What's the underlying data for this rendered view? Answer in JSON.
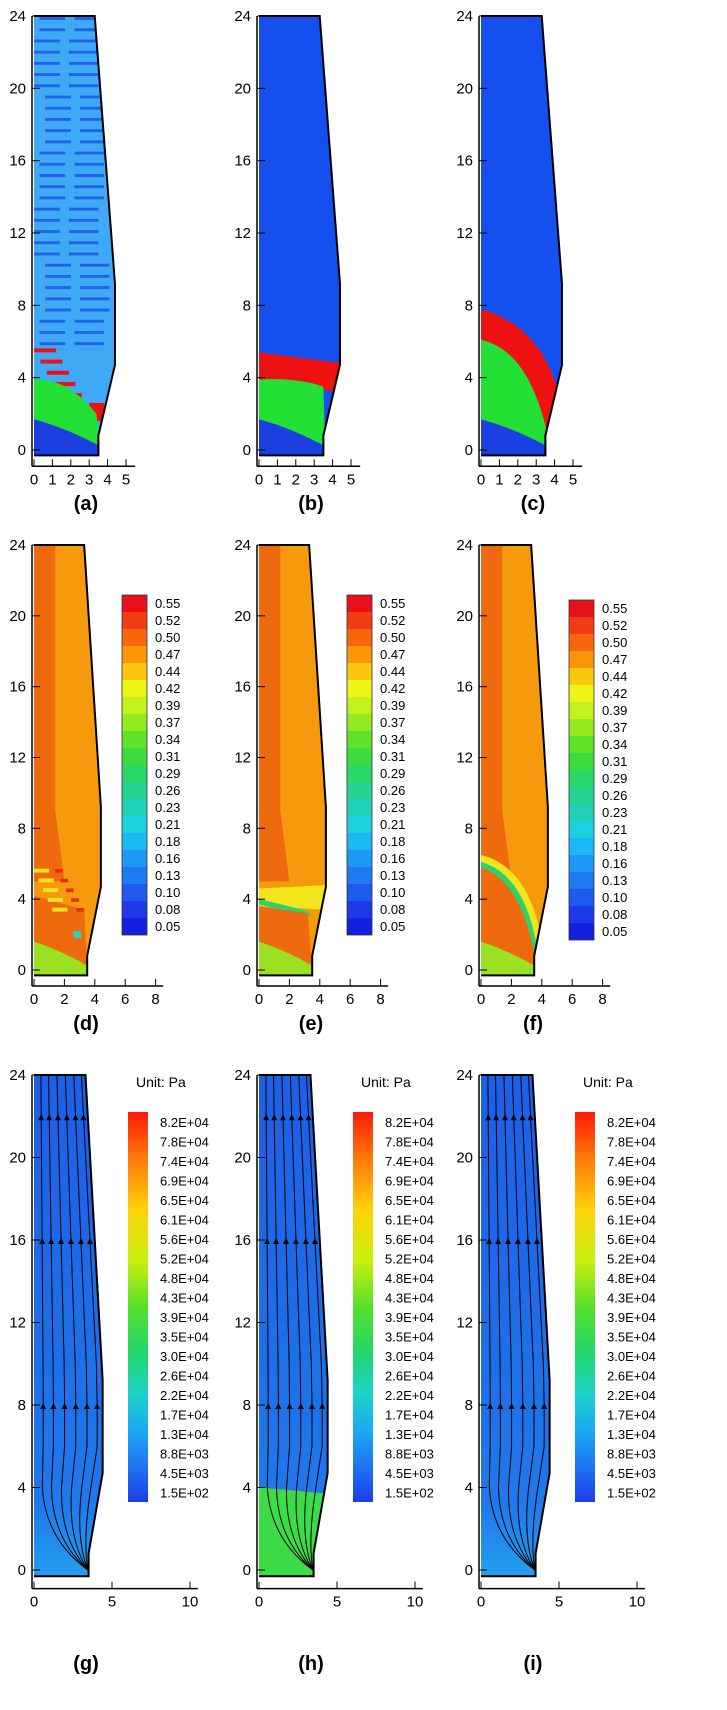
{
  "palette": {
    "stripe_light": "#3fa9f5",
    "stripe_dark": "#1f63e6",
    "uniform_blue": "#1550ee",
    "bottom_blue": "#1c3fe0",
    "green": "#22e034",
    "red": "#ee1111",
    "orange": "#f59a0c",
    "orange_dark": "#ef6a0f",
    "yellow": "#f3e51c",
    "lime": "#9be021",
    "pressure_bg": "#1e65e6",
    "pressure_low": "#1f9bee",
    "pressure_green": "#3ddc47",
    "streamline": "#000000"
  },
  "axes": {
    "row_ab_c": {
      "x_ticks": [
        "0",
        "1",
        "2",
        "3",
        "4",
        "5"
      ],
      "y_ticks": [
        "0",
        "4",
        "8",
        "12",
        "16",
        "20",
        "24"
      ]
    },
    "row_def": {
      "x_ticks": [
        "0",
        "2",
        "4",
        "6",
        "8"
      ],
      "y_ticks": [
        "0",
        "4",
        "8",
        "12",
        "16",
        "20",
        "24"
      ]
    },
    "row_ghi": {
      "x_ticks": [
        "0",
        "5",
        "10"
      ],
      "y_ticks": [
        "0",
        "4",
        "8",
        "12",
        "16",
        "20",
        "24"
      ]
    }
  },
  "panels": [
    {
      "caption": "(a)",
      "style": "stripes"
    },
    {
      "caption": "(b)",
      "style": "flat_band"
    },
    {
      "caption": "(c)",
      "style": "curved_band"
    },
    {
      "caption": "(d)",
      "style": "frac_stripes"
    },
    {
      "caption": "(e)",
      "style": "frac_flat"
    },
    {
      "caption": "(f)",
      "style": "frac_curved"
    },
    {
      "caption": "(g)",
      "style": "pressure"
    },
    {
      "caption": "(h)",
      "style": "pressure_green"
    },
    {
      "caption": "(i)",
      "style": "pressure"
    }
  ],
  "legend_fraction": {
    "values": [
      "0.55",
      "0.52",
      "0.50",
      "0.47",
      "0.44",
      "0.42",
      "0.39",
      "0.37",
      "0.34",
      "0.31",
      "0.29",
      "0.26",
      "0.23",
      "0.21",
      "0.18",
      "0.16",
      "0.13",
      "0.10",
      "0.08",
      "0.05"
    ],
    "colors": [
      "#e8101a",
      "#f23d12",
      "#f8670c",
      "#fb950a",
      "#f9c710",
      "#eef418",
      "#c2f21e",
      "#93ea20",
      "#5fe22a",
      "#3bdc3e",
      "#2bd867",
      "#25d48f",
      "#20d1b7",
      "#1dd0de",
      "#1cb8f3",
      "#1d98f4",
      "#1f79f0",
      "#1f5aee",
      "#1d3aea",
      "#1420e0"
    ]
  },
  "legend_pressure": {
    "unit": "Unit: Pa",
    "values": [
      "8.2E+04",
      "7.8E+04",
      "7.4E+04",
      "6.9E+04",
      "6.5E+04",
      "6.1E+04",
      "5.6E+04",
      "5.2E+04",
      "4.8E+04",
      "4.3E+04",
      "3.9E+04",
      "3.5E+04",
      "3.0E+04",
      "2.6E+04",
      "2.2E+04",
      "1.7E+04",
      "1.3E+04",
      "8.8E+03",
      "4.5E+03",
      "1.5E+02"
    ]
  }
}
